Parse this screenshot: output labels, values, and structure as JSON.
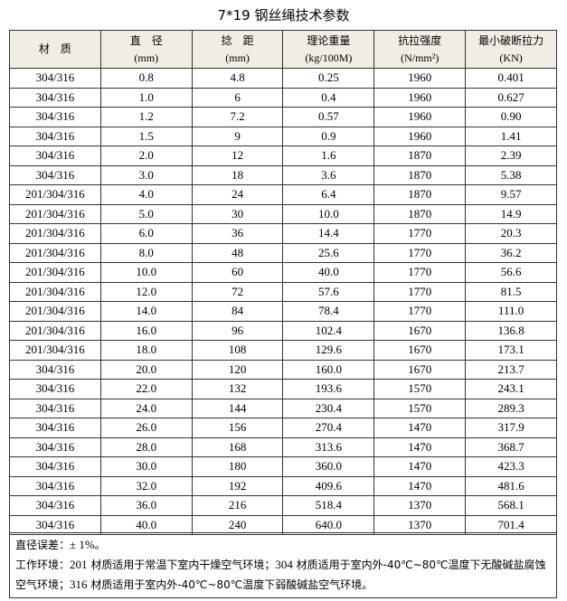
{
  "title": "7*19 钢丝绳技术参数",
  "headers": [
    {
      "name": "材　质",
      "unit": ""
    },
    {
      "name": "直　径",
      "unit": "(mm)"
    },
    {
      "name": "捻　距",
      "unit": "(mm)"
    },
    {
      "name": "理论重量",
      "unit": "(kg/100M)"
    },
    {
      "name": "抗拉强度",
      "unit": "(N/mm²)"
    },
    {
      "name": "最小破断拉力",
      "unit": "(KN)"
    }
  ],
  "rows": [
    [
      "304/316",
      "0.8",
      "4.8",
      "0.25",
      "1960",
      "0.401"
    ],
    [
      "304/316",
      "1.0",
      "6",
      "0.4",
      "1960",
      "0.627"
    ],
    [
      "304/316",
      "1.2",
      "7.2",
      "0.57",
      "1960",
      "0.90"
    ],
    [
      "304/316",
      "1.5",
      "9",
      "0.9",
      "1960",
      "1.41"
    ],
    [
      "304/316",
      "2.0",
      "12",
      "1.6",
      "1870",
      "2.39"
    ],
    [
      "304/316",
      "3.0",
      "18",
      "3.6",
      "1870",
      "5.38"
    ],
    [
      "201/304/316",
      "4.0",
      "24",
      "6.4",
      "1870",
      "9.57"
    ],
    [
      "201/304/316",
      "5.0",
      "30",
      "10.0",
      "1870",
      "14.9"
    ],
    [
      "201/304/316",
      "6.0",
      "36",
      "14.4",
      "1770",
      "20.3"
    ],
    [
      "201/304/316",
      "8.0",
      "48",
      "25.6",
      "1770",
      "36.2"
    ],
    [
      "201/304/316",
      "10.0",
      "60",
      "40.0",
      "1770",
      "56.6"
    ],
    [
      "201/304/316",
      "12.0",
      "72",
      "57.6",
      "1770",
      "81.5"
    ],
    [
      "201/304/316",
      "14.0",
      "84",
      "78.4",
      "1770",
      "111.0"
    ],
    [
      "201/304/316",
      "16.0",
      "96",
      "102.4",
      "1670",
      "136.8"
    ],
    [
      "201/304/316",
      "18.0",
      "108",
      "129.6",
      "1670",
      "173.1"
    ],
    [
      "304/316",
      "20.0",
      "120",
      "160.0",
      "1670",
      "213.7"
    ],
    [
      "304/316",
      "22.0",
      "132",
      "193.6",
      "1570",
      "243.1"
    ],
    [
      "304/316",
      "24.0",
      "144",
      "230.4",
      "1570",
      "289.3"
    ],
    [
      "304/316",
      "26.0",
      "156",
      "270.4",
      "1470",
      "317.9"
    ],
    [
      "304/316",
      "28.0",
      "168",
      "313.6",
      "1470",
      "368.7"
    ],
    [
      "304/316",
      "30.0",
      "180",
      "360.0",
      "1470",
      "423.3"
    ],
    [
      "304/316",
      "32.0",
      "192",
      "409.6",
      "1470",
      "481.6"
    ],
    [
      "304/316",
      "36.0",
      "216",
      "518.4",
      "1370",
      "568.1"
    ],
    [
      "304/316",
      "40.0",
      "240",
      "640.0",
      "1370",
      "701.4"
    ]
  ],
  "notes": {
    "tolerance_label": "直径误差：",
    "tolerance_value": "± 1%",
    "tolerance_end": "。",
    "env_label": "工作环境：",
    "env_201_num": "201",
    "env_201_text": " 材质适用于常温下室内干燥空气环境；",
    "env_304_num": "304",
    "env_304_text": " 材质适用于室内外-40℃~80℃温度下无酸碱盐腐蚀空气环境；",
    "env_316_num": "316",
    "env_316_text": " 材质适用于室内外-40℃~80℃温度下弱酸碱盐空气环境。"
  }
}
